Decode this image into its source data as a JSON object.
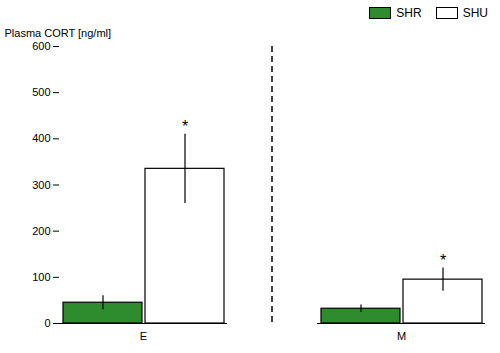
{
  "chart_data": {
    "type": "bar",
    "categories": [
      "E",
      "M"
    ],
    "series": [
      {
        "name": "SHR",
        "color": "#2e8b2e",
        "values": [
          45,
          32
        ],
        "errors": [
          15,
          8
        ]
      },
      {
        "name": "SHU",
        "color": "#ffffff",
        "values": [
          335,
          95
        ],
        "errors": [
          75,
          25
        ]
      }
    ],
    "ylabel": "Plasma CORT [ng/ml]",
    "ylim": [
      0,
      600
    ],
    "yticks": [
      0,
      100,
      200,
      300,
      400,
      500,
      600
    ],
    "annotations": [
      {
        "text": "*",
        "category": "E",
        "series": "SHU"
      },
      {
        "text": "*",
        "category": "M",
        "series": "SHU"
      }
    ],
    "legend": "upper right",
    "grid": false
  }
}
